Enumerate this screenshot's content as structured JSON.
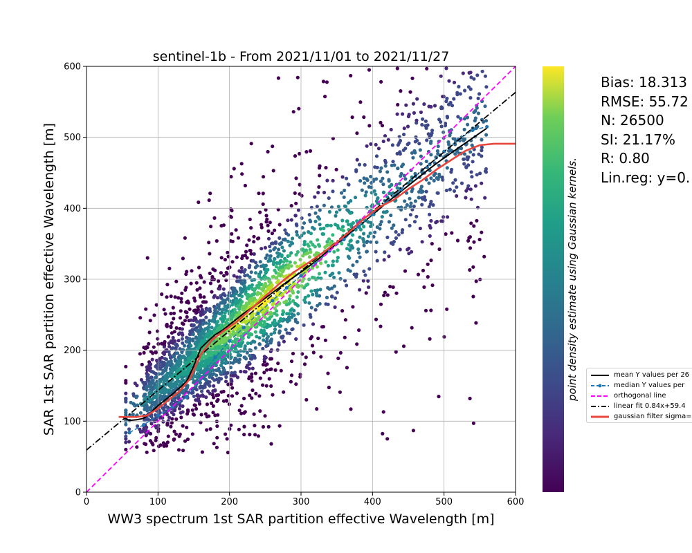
{
  "chart_data": {
    "type": "scatter",
    "title": "sentinel-1b - From 2021/11/01 to 2021/11/27",
    "xlabel": "WW3 spectrum 1st SAR partition effective Wavelength [m]",
    "ylabel": "SAR 1st SAR partition effective Wavelength [m]",
    "xlim": [
      0,
      600
    ],
    "ylim": [
      0,
      600
    ],
    "xticks": [
      0,
      100,
      200,
      300,
      400,
      500,
      600
    ],
    "yticks": [
      0,
      100,
      200,
      300,
      400,
      500,
      600
    ],
    "grid": true,
    "colorbar_label": "point density estimate using Gaussian kernels.",
    "colormap": "viridis",
    "n_points": 26500,
    "stats": [
      "Bias: 18.313",
      "RMSE: 55.72",
      "N: 26500",
      "SI: 21.17%",
      "R: 0.80",
      "Lin.reg: y=0."
    ],
    "legend_position": "right, outside the plot",
    "series": [
      {
        "name": "mean Y values per 26",
        "style": "solid",
        "color": "#000000",
        "x": [
          50,
          60,
          70,
          80,
          90,
          100,
          110,
          120,
          130,
          140,
          150,
          160,
          170,
          180,
          190,
          200,
          220,
          240,
          260,
          280,
          300,
          320,
          340,
          360,
          380,
          400,
          420,
          440,
          460,
          480,
          500,
          520,
          540,
          560
        ],
        "y": [
          106,
          101,
          102,
          104,
          112,
          122,
          130,
          138,
          147,
          156,
          178,
          203,
          213,
          222,
          228,
          236,
          252,
          266,
          281,
          296,
          310,
          325,
          342,
          358,
          374,
          391,
          408,
          424,
          440,
          456,
          471,
          485,
          499,
          513
        ]
      },
      {
        "name": "median Y values per",
        "style": "dashed-dots",
        "color": "#1f77b4",
        "x": [
          60,
          80,
          100,
          120,
          140,
          160,
          180,
          200,
          220,
          240,
          260,
          280,
          300,
          320,
          340,
          360,
          380,
          400,
          420,
          440,
          460,
          480,
          500,
          520,
          540,
          560
        ],
        "y": [
          84,
          95,
          108,
          120,
          134,
          160,
          190,
          213,
          232,
          252,
          270,
          288,
          305,
          322,
          340,
          356,
          374,
          392,
          410,
          427,
          445,
          462,
          480,
          497,
          510,
          515
        ]
      },
      {
        "name": "orthogonal line",
        "style": "dashed",
        "color": "#ff00ff",
        "x": [
          0,
          600
        ],
        "y": [
          0,
          600
        ]
      },
      {
        "name": "linear fit 0.84x+59.4",
        "style": "dashdot",
        "color": "#000000",
        "x": [
          0,
          600
        ],
        "y": [
          59.4,
          563.4
        ]
      },
      {
        "name": "gaussian filter sigma=",
        "style": "solid",
        "color": "#e8463c",
        "x": [
          45,
          70,
          85,
          100,
          115,
          130,
          145,
          160,
          175,
          190,
          210,
          230,
          250,
          270,
          290,
          310,
          330,
          350,
          370,
          390,
          410,
          430,
          450,
          470,
          490,
          510,
          530,
          550,
          570,
          590,
          600
        ],
        "y": [
          106,
          106,
          108,
          118,
          130,
          142,
          160,
          194,
          214,
          226,
          240,
          258,
          276,
          294,
          310,
          323,
          337,
          352,
          369,
          387,
          402,
          412,
          427,
          440,
          455,
          468,
          481,
          489,
          491,
          491,
          491
        ]
      }
    ]
  }
}
